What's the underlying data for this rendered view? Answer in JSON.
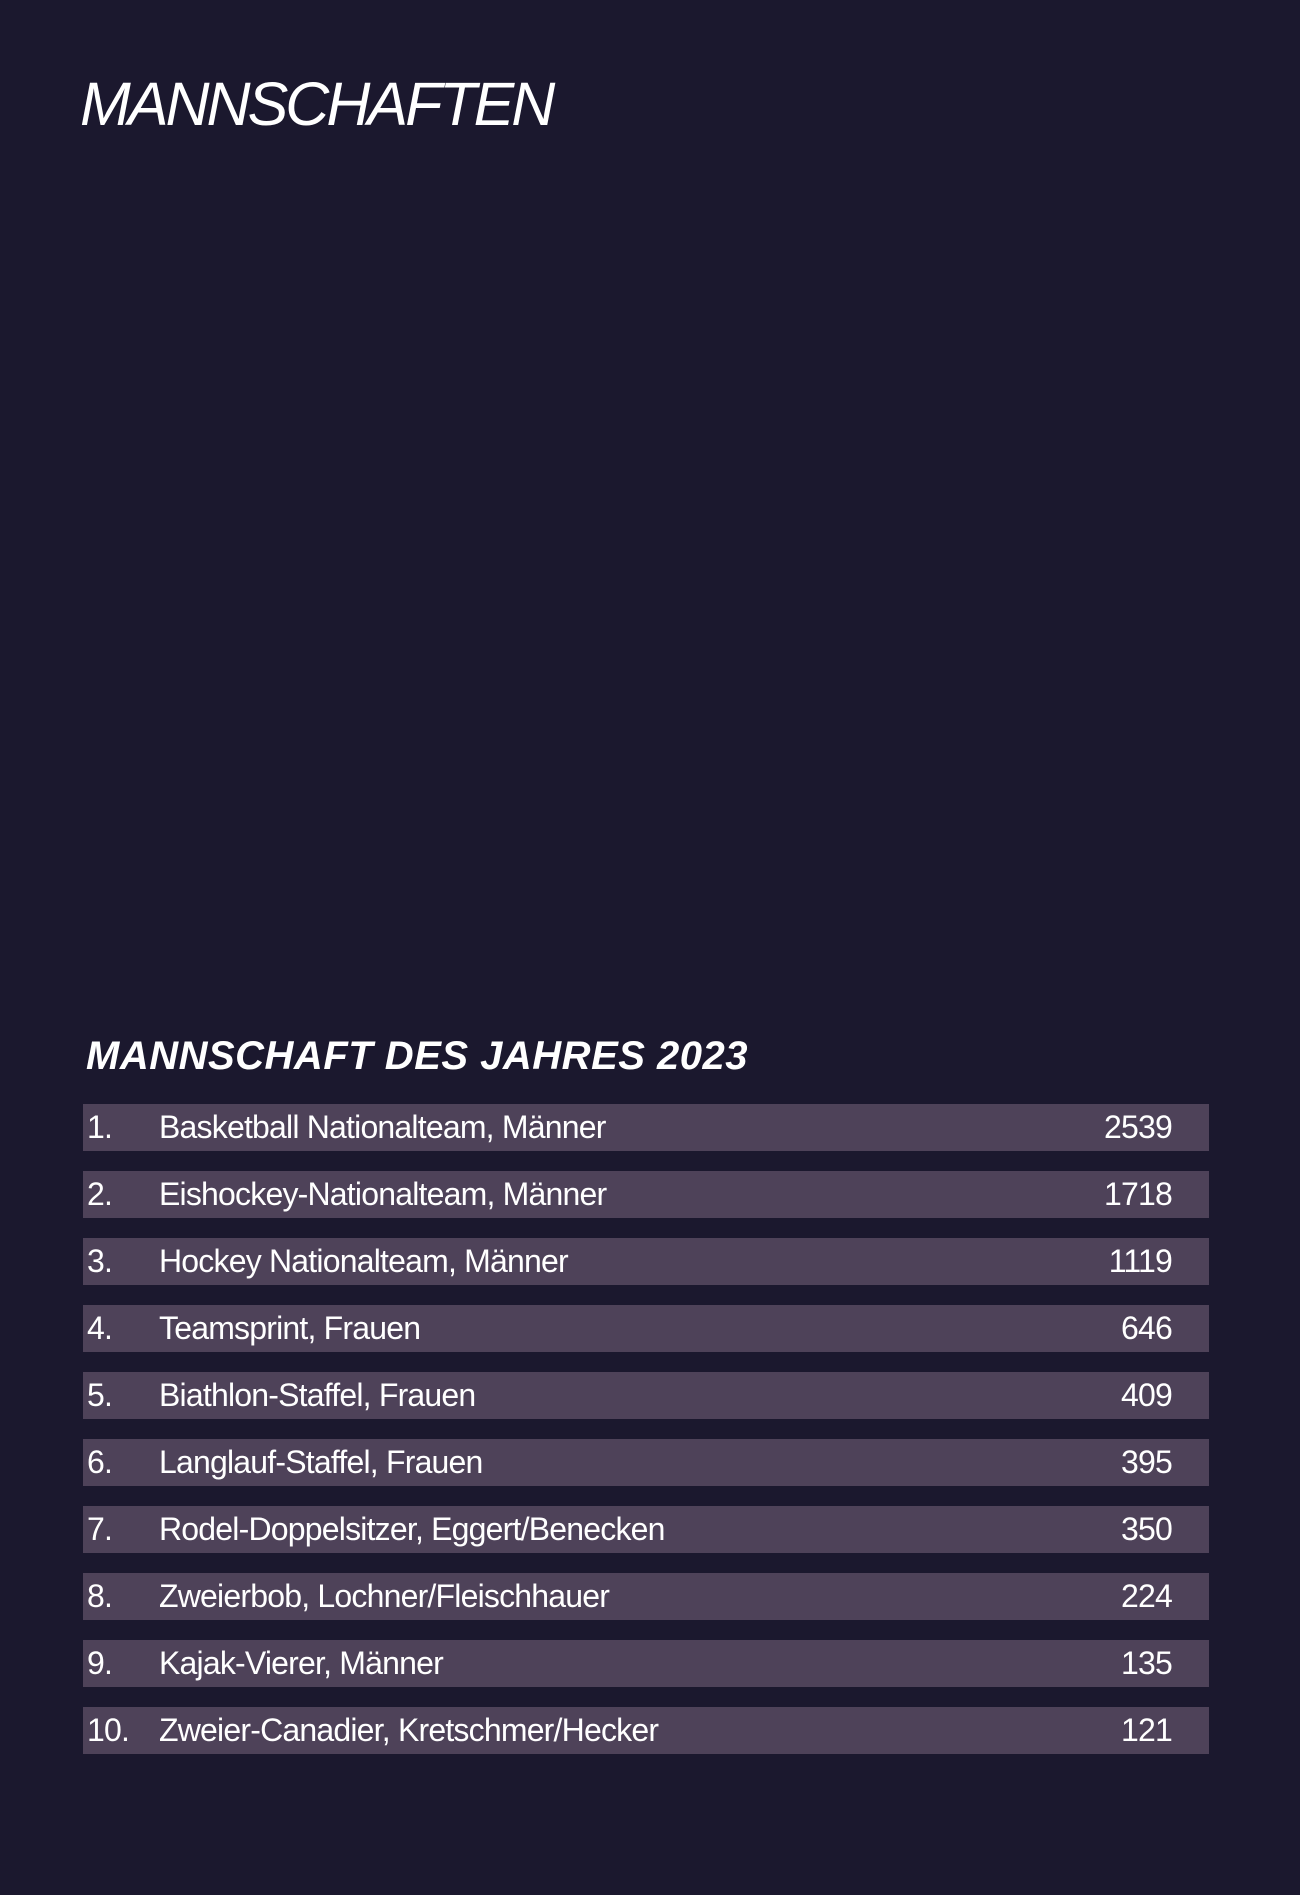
{
  "page": {
    "title": "MANNSCHAFTEN"
  },
  "section": {
    "title": "MANNSCHAFT DES JAHRES 2023"
  },
  "ranking": [
    {
      "rank": "1.",
      "team": "Basketball Nationalteam, Männer",
      "votes": "2539"
    },
    {
      "rank": "2.",
      "team": "Eishockey-Nationalteam, Männer",
      "votes": "1718"
    },
    {
      "rank": "3.",
      "team": "Hockey Nationalteam, Männer",
      "votes": "1119"
    },
    {
      "rank": "4.",
      "team": "Teamsprint, Frauen",
      "votes": "646"
    },
    {
      "rank": "5.",
      "team": "Biathlon-Staffel, Frauen",
      "votes": "409"
    },
    {
      "rank": "6.",
      "team": "Langlauf-Staffel, Frauen",
      "votes": "395"
    },
    {
      "rank": "7.",
      "team": "Rodel-Doppelsitzer, Eggert/Benecken",
      "votes": "350"
    },
    {
      "rank": "8.",
      "team": "Zweierbob, Lochner/Fleischhauer",
      "votes": "224"
    },
    {
      "rank": "9.",
      "team": "Kajak-Vierer, Männer",
      "votes": "135"
    },
    {
      "rank": "10.",
      "team": "Zweier-Canadier, Kretschmer/Hecker",
      "votes": "121"
    }
  ],
  "colors": {
    "background": "#1b182e",
    "row_background": "#4e4259",
    "text": "#ffffff"
  }
}
